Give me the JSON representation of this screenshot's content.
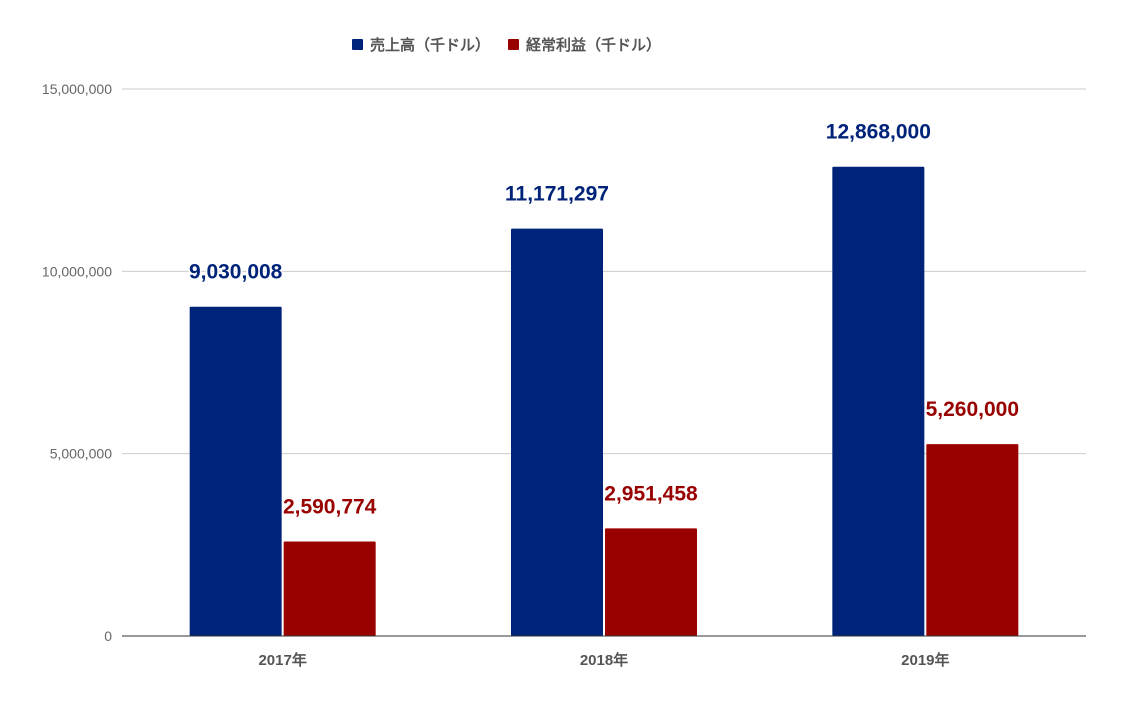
{
  "chart_data": {
    "type": "bar",
    "title": "",
    "xlabel": "",
    "ylabel": "",
    "categories": [
      "2017年",
      "2018年",
      "2019年"
    ],
    "series": [
      {
        "name": "売上高（千ドル）",
        "color": "#00237a",
        "values": [
          9030008,
          11171297,
          12868000
        ],
        "labels": [
          "9,030,008",
          "11,171,297",
          "12,868,000"
        ]
      },
      {
        "name": "経常利益（千ドル）",
        "color": "#990000",
        "values": [
          2590774,
          2951458,
          5260000
        ],
        "labels": [
          "2,590,774",
          "2,951,458",
          "5,260,000"
        ]
      }
    ],
    "ylim": [
      0,
      15000000
    ],
    "yticks": [
      0,
      5000000,
      10000000,
      15000000
    ],
    "ytick_labels": [
      "0",
      "5,000,000",
      "10,000,000",
      "15,000,000"
    ],
    "grid": true,
    "legend_position": "top"
  }
}
